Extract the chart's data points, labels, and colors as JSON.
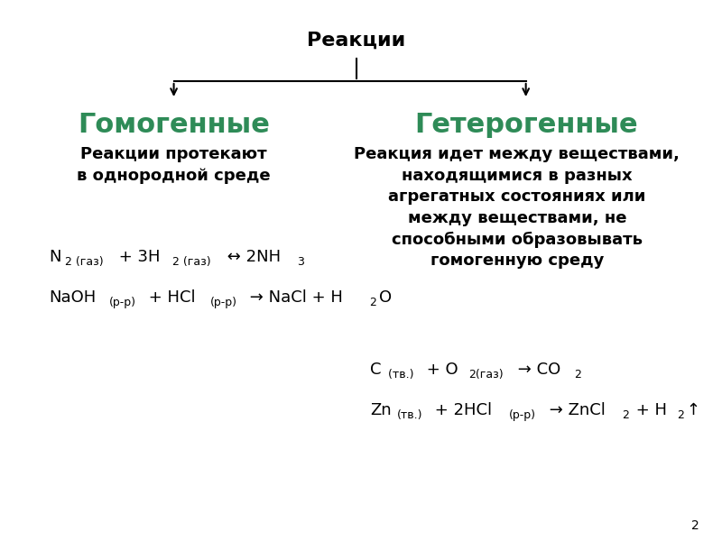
{
  "title": "Реакции",
  "title_fontsize": 16,
  "title_bold": true,
  "bg_color": "#ffffff",
  "left_header": "Гомогенные",
  "right_header": "Гетерогенные",
  "header_color": "#2E8B57",
  "header_fontsize": 22,
  "left_desc": "Реакции протекают\nв однородной среде",
  "right_desc": "Реакция идет между веществами,\nнаходящимися в разных\nагрегатных состояниях или\nмежду веществами, не\nспособными образовывать\nгомогенную среду",
  "desc_fontsize": 13,
  "desc_bold": true,
  "text_color": "#000000",
  "page_number": "2"
}
